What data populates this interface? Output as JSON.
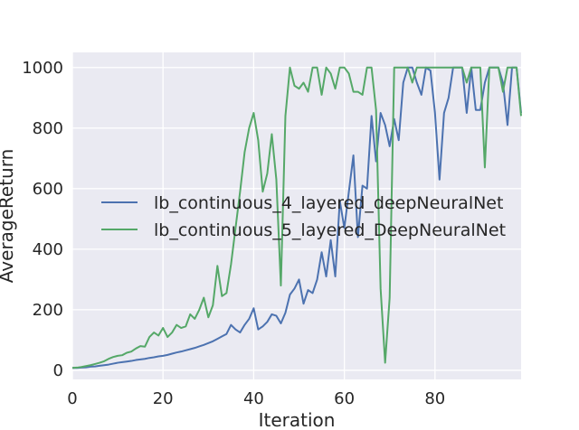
{
  "chart_data": {
    "type": "line",
    "xlabel": "Iteration",
    "ylabel": "AverageReturn",
    "xlim": [
      0,
      99
    ],
    "ylim": [
      -30,
      1050
    ],
    "xticks": [
      0,
      20,
      40,
      60,
      80
    ],
    "yticks": [
      0,
      200,
      400,
      600,
      800,
      1000
    ],
    "grid": true,
    "background": "#EAEAF2",
    "legend_position": "center-left",
    "series": [
      {
        "name": "lb_continuous_4_layered_deepNeuralNet",
        "color": "#4C72B0",
        "x": [
          0,
          1,
          2,
          3,
          4,
          5,
          6,
          7,
          8,
          9,
          10,
          11,
          12,
          13,
          14,
          15,
          16,
          17,
          18,
          19,
          20,
          21,
          22,
          23,
          24,
          25,
          26,
          27,
          28,
          29,
          30,
          31,
          32,
          33,
          34,
          35,
          36,
          37,
          38,
          39,
          40,
          41,
          42,
          43,
          44,
          45,
          46,
          47,
          48,
          49,
          50,
          51,
          52,
          53,
          54,
          55,
          56,
          57,
          58,
          59,
          60,
          61,
          62,
          63,
          64,
          65,
          66,
          67,
          68,
          69,
          70,
          71,
          72,
          73,
          74,
          75,
          76,
          77,
          78,
          79,
          80,
          81,
          82,
          83,
          84,
          85,
          86,
          87,
          88,
          89,
          90,
          91,
          92,
          93,
          94,
          95,
          96,
          97,
          98,
          99
        ],
        "y": [
          8,
          8,
          9,
          10,
          12,
          13,
          15,
          17,
          19,
          22,
          25,
          27,
          29,
          31,
          34,
          36,
          38,
          41,
          43,
          46,
          48,
          51,
          55,
          59,
          62,
          66,
          70,
          74,
          79,
          84,
          90,
          96,
          104,
          112,
          120,
          150,
          135,
          125,
          150,
          170,
          205,
          135,
          145,
          160,
          185,
          180,
          155,
          190,
          250,
          270,
          300,
          220,
          265,
          255,
          300,
          390,
          310,
          430,
          310,
          560,
          470,
          590,
          710,
          440,
          610,
          600,
          840,
          690,
          850,
          810,
          740,
          830,
          760,
          950,
          1000,
          1000,
          950,
          910,
          1000,
          990,
          850,
          630,
          850,
          900,
          1000,
          1000,
          1000,
          850,
          1000,
          860,
          860,
          950,
          1000,
          1000,
          1000,
          950,
          810,
          1000,
          1000,
          850
        ]
      },
      {
        "name": "lb_continuous_5_layered_DeepNeuralNet",
        "color": "#55A868",
        "x": [
          0,
          1,
          2,
          3,
          4,
          5,
          6,
          7,
          8,
          9,
          10,
          11,
          12,
          13,
          14,
          15,
          16,
          17,
          18,
          19,
          20,
          21,
          22,
          23,
          24,
          25,
          26,
          27,
          28,
          29,
          30,
          31,
          32,
          33,
          34,
          35,
          36,
          37,
          38,
          39,
          40,
          41,
          42,
          43,
          44,
          45,
          46,
          47,
          48,
          49,
          50,
          51,
          52,
          53,
          54,
          55,
          56,
          57,
          58,
          59,
          60,
          61,
          62,
          63,
          64,
          65,
          66,
          67,
          68,
          69,
          70,
          71,
          72,
          73,
          74,
          75,
          76,
          77,
          78,
          79,
          80,
          81,
          82,
          83,
          84,
          85,
          86,
          87,
          88,
          89,
          90,
          91,
          92,
          93,
          94,
          95,
          96,
          97,
          98,
          99
        ],
        "y": [
          8,
          9,
          11,
          14,
          17,
          21,
          25,
          30,
          38,
          44,
          48,
          50,
          58,
          62,
          72,
          80,
          78,
          110,
          125,
          115,
          140,
          110,
          125,
          150,
          140,
          145,
          185,
          170,
          200,
          240,
          175,
          215,
          345,
          245,
          255,
          350,
          470,
          590,
          720,
          800,
          850,
          760,
          590,
          650,
          780,
          630,
          280,
          840,
          1000,
          940,
          930,
          950,
          920,
          1000,
          1000,
          910,
          1000,
          980,
          930,
          1000,
          1000,
          980,
          920,
          920,
          910,
          1000,
          1000,
          860,
          270,
          25,
          240,
          1000,
          1000,
          1000,
          1000,
          950,
          1000,
          1000,
          1000,
          1000,
          1000,
          1000,
          1000,
          1000,
          1000,
          1000,
          1000,
          950,
          1000,
          1000,
          1000,
          670,
          1000,
          1000,
          1000,
          920,
          1000,
          1000,
          1000,
          840
        ]
      }
    ]
  }
}
